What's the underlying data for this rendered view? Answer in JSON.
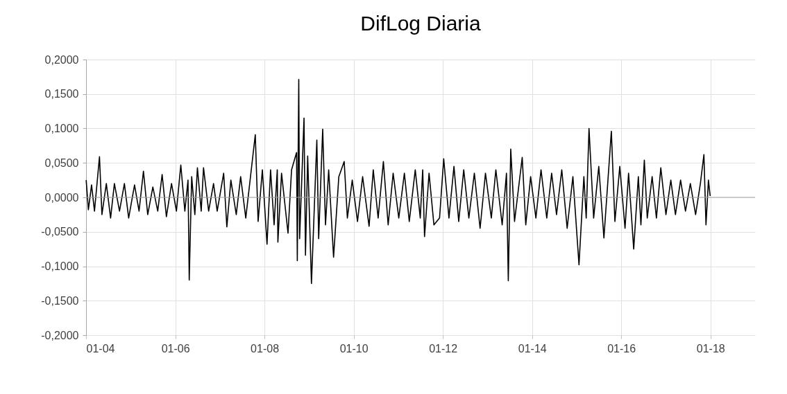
{
  "chart_data": {
    "type": "line",
    "title": "DifLog Diaria",
    "x": [
      "2004-01-02",
      "2004-01-20",
      "2004-02-15",
      "2004-03-10",
      "2004-04-20",
      "2004-05-10",
      "2004-06-15",
      "2004-07-20",
      "2004-08-20",
      "2004-10-01",
      "2004-11-10",
      "2004-12-15",
      "2005-02-01",
      "2005-03-10",
      "2005-04-15",
      "2005-05-20",
      "2005-07-01",
      "2005-08-10",
      "2005-09-15",
      "2005-10-20",
      "2005-12-01",
      "2006-01-10",
      "2006-02-15",
      "2006-03-20",
      "2006-04-15",
      "2006-04-25",
      "2006-05-15",
      "2006-06-10",
      "2006-07-01",
      "2006-08-01",
      "2006-08-20",
      "2006-10-01",
      "2006-11-10",
      "2006-12-10",
      "2007-02-01",
      "2007-02-27",
      "2007-04-01",
      "2007-05-15",
      "2007-06-20",
      "2007-08-01",
      "2007-10-18",
      "2007-11-10",
      "2007-12-15",
      "2008-01-22",
      "2008-02-20",
      "2008-03-20",
      "2008-04-15",
      "2008-04-20",
      "2008-05-20",
      "2008-07-12",
      "2008-08-10",
      "2008-09-20",
      "2008-09-26",
      "2008-10-08",
      "2008-10-15",
      "2008-11-20",
      "2008-12-02",
      "2008-12-20",
      "2009-01-20",
      "2009-03-05",
      "2009-03-20",
      "2009-04-22",
      "2009-05-15",
      "2009-06-10",
      "2009-07-20",
      "2009-09-01",
      "2009-10-15",
      "2009-11-10",
      "2009-12-20",
      "2010-02-01",
      "2010-03-15",
      "2010-05-07",
      "2010-06-10",
      "2010-07-20",
      "2010-09-01",
      "2010-10-10",
      "2010-11-20",
      "2011-01-05",
      "2011-02-20",
      "2011-04-01",
      "2011-05-20",
      "2011-06-30",
      "2011-07-20",
      "2011-08-04",
      "2011-09-10",
      "2011-10-20",
      "2011-12-05",
      "2012-01-08",
      "2012-02-20",
      "2012-04-01",
      "2012-05-10",
      "2012-06-20",
      "2012-08-01",
      "2012-09-15",
      "2012-11-01",
      "2012-12-15",
      "2013-02-01",
      "2013-03-10",
      "2013-05-01",
      "2013-06-05",
      "2013-06-20",
      "2013-07-10",
      "2013-08-10",
      "2013-10-12",
      "2013-11-10",
      "2013-12-20",
      "2014-02-01",
      "2014-03-15",
      "2014-05-01",
      "2014-06-10",
      "2014-07-20",
      "2014-09-01",
      "2014-10-15",
      "2014-12-01",
      "2015-01-20",
      "2015-03-01",
      "2015-03-20",
      "2015-04-12",
      "2015-05-20",
      "2015-07-01",
      "2015-08-12",
      "2015-10-12",
      "2015-11-10",
      "2015-12-20",
      "2016-02-01",
      "2016-03-01",
      "2016-04-12",
      "2016-05-20",
      "2016-06-10",
      "2016-07-08",
      "2016-08-01",
      "2016-09-10",
      "2016-10-15",
      "2016-11-20",
      "2017-01-01",
      "2017-02-10",
      "2017-03-20",
      "2017-05-01",
      "2017-06-10",
      "2017-07-20",
      "2017-09-01",
      "2017-10-10",
      "2017-11-08",
      "2017-11-25",
      "2017-12-15",
      "2017-12-29"
    ],
    "series": [
      {
        "color": "#000000",
        "values": [
          0.025,
          -0.018,
          0.018,
          -0.02,
          0.059,
          -0.025,
          0.02,
          -0.03,
          0.02,
          -0.02,
          0.02,
          -0.03,
          0.018,
          -0.02,
          0.038,
          -0.025,
          0.015,
          -0.02,
          0.033,
          -0.028,
          0.02,
          -0.02,
          0.047,
          -0.02,
          0.025,
          -0.12,
          0.03,
          -0.025,
          0.043,
          -0.02,
          0.043,
          -0.02,
          0.02,
          -0.02,
          0.035,
          -0.043,
          0.025,
          -0.025,
          0.03,
          -0.03,
          0.091,
          -0.035,
          0.04,
          -0.068,
          0.04,
          -0.04,
          0.04,
          -0.065,
          0.035,
          -0.052,
          0.04,
          0.065,
          -0.092,
          0.171,
          -0.06,
          0.115,
          -0.084,
          0.06,
          -0.125,
          0.083,
          -0.06,
          0.099,
          -0.04,
          0.04,
          -0.087,
          0.03,
          0.052,
          -0.03,
          0.025,
          -0.035,
          0.03,
          -0.042,
          0.04,
          -0.03,
          0.052,
          -0.04,
          0.035,
          -0.03,
          0.035,
          -0.035,
          0.04,
          -0.03,
          0.04,
          -0.057,
          0.035,
          -0.04,
          -0.03,
          0.056,
          -0.03,
          0.045,
          -0.035,
          0.04,
          -0.03,
          0.035,
          -0.045,
          0.035,
          -0.03,
          0.04,
          -0.04,
          0.035,
          -0.121,
          0.07,
          -0.035,
          0.058,
          -0.04,
          0.03,
          -0.03,
          0.04,
          -0.03,
          0.035,
          -0.025,
          0.04,
          -0.045,
          0.03,
          -0.098,
          0.03,
          -0.03,
          0.1,
          -0.03,
          0.045,
          -0.059,
          0.096,
          -0.035,
          0.045,
          -0.045,
          0.035,
          -0.075,
          0.03,
          -0.04,
          0.054,
          -0.03,
          0.03,
          -0.03,
          0.043,
          -0.025,
          0.025,
          -0.025,
          0.025,
          -0.02,
          0.02,
          -0.025,
          0.02,
          0.062,
          -0.04,
          0.025,
          0.002
        ]
      }
    ],
    "xlim": [
      "2004-01-01",
      "2019-01-01"
    ],
    "xticks": [
      {
        "value": "2004-01-01",
        "label": "01-04"
      },
      {
        "value": "2006-01-01",
        "label": "01-06"
      },
      {
        "value": "2008-01-01",
        "label": "01-08"
      },
      {
        "value": "2010-01-01",
        "label": "01-10"
      },
      {
        "value": "2012-01-01",
        "label": "01-12"
      },
      {
        "value": "2014-01-01",
        "label": "01-14"
      },
      {
        "value": "2016-01-01",
        "label": "01-16"
      },
      {
        "value": "2018-01-01",
        "label": "01-18"
      }
    ],
    "ylim": [
      -0.2,
      0.2
    ],
    "yticks": [
      {
        "value": -0.2,
        "label": "-0,2000"
      },
      {
        "value": -0.15,
        "label": "-0,1500"
      },
      {
        "value": -0.1,
        "label": "-0,1000"
      },
      {
        "value": -0.05,
        "label": "-0,0500"
      },
      {
        "value": 0,
        "label": "0,0000"
      },
      {
        "value": 0.05,
        "label": "0,0500"
      },
      {
        "value": 0.1,
        "label": "0,1000"
      },
      {
        "value": 0.15,
        "label": "0,1500"
      },
      {
        "value": 0.2,
        "label": "0,2000"
      }
    ],
    "ref_lines": [
      {
        "axis": "y",
        "value": 0,
        "color": "#a6a6a6"
      }
    ],
    "grid": true
  }
}
